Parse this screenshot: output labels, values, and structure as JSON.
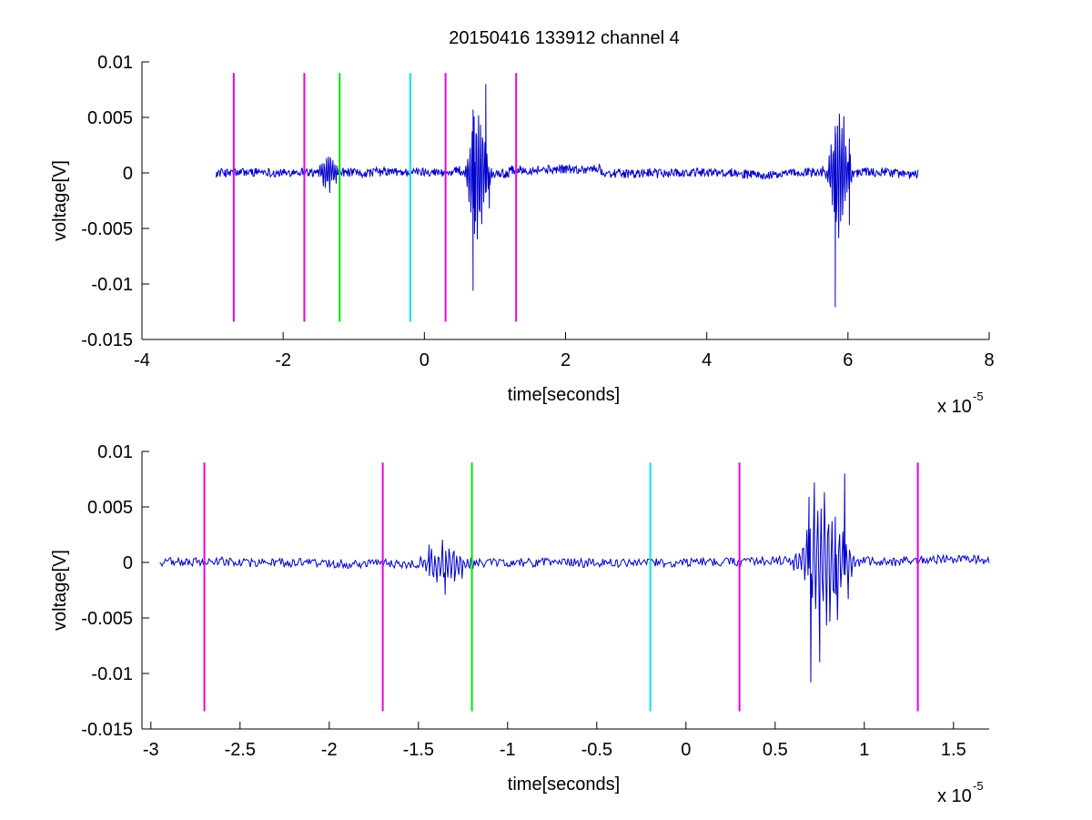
{
  "chart_data": [
    {
      "type": "line",
      "title": "20150416 133912 channel 4",
      "xlabel": "time[seconds]",
      "ylabel": "voltage[V]",
      "x_multiplier": "x 10",
      "x_multiplier_exp": "-5",
      "xlim": [
        -4,
        8
      ],
      "ylim": [
        -0.015,
        0.01
      ],
      "x_ticks": [
        -4,
        -2,
        0,
        2,
        4,
        6,
        8
      ],
      "x_tick_labels": [
        "-4",
        "-2",
        "0",
        "2",
        "4",
        "6",
        "8"
      ],
      "y_ticks": [
        0.01,
        0.005,
        0,
        -0.005,
        -0.01,
        -0.015
      ],
      "y_tick_labels": [
        "0.01",
        "0.005",
        "0",
        "-0.005",
        "-0.01",
        "-0.015"
      ],
      "signal": {
        "color": "#0000cc",
        "x_range": [
          -2.95,
          7.0
        ],
        "bursts": [
          {
            "center": -1.35,
            "width": 0.12,
            "amp": 0.0022
          },
          {
            "center": 0.75,
            "width": 0.15,
            "amp": 0.0075
          },
          {
            "center": 5.88,
            "width": 0.15,
            "amp": 0.0075
          }
        ],
        "key_points": [
          {
            "x": 0.69,
            "y": -0.0106
          },
          {
            "x": 0.69,
            "y": 0.0057
          },
          {
            "x": 0.71,
            "y": -0.0055
          },
          {
            "x": 0.87,
            "y": 0.008
          },
          {
            "x": 0.92,
            "y": -0.0032
          },
          {
            "x": 5.82,
            "y": 0.0042
          },
          {
            "x": 5.82,
            "y": -0.0121
          },
          {
            "x": 6.02,
            "y": 0.0031
          },
          {
            "x": 6.02,
            "y": -0.0047
          }
        ]
      },
      "markers": [
        {
          "x": -2.7,
          "color": "#e600e6",
          "y_top": 0.009,
          "y_bottom": -0.0134
        },
        {
          "x": -1.7,
          "color": "#e600e6",
          "y_top": 0.009,
          "y_bottom": -0.0134
        },
        {
          "x": -1.2,
          "color": "#00e600",
          "y_top": 0.009,
          "y_bottom": -0.0134
        },
        {
          "x": -0.2,
          "color": "#00e6e6",
          "y_top": 0.009,
          "y_bottom": -0.0134
        },
        {
          "x": 0.3,
          "color": "#e600e6",
          "y_top": 0.009,
          "y_bottom": -0.0134
        },
        {
          "x": 1.3,
          "color": "#e600e6",
          "y_top": 0.009,
          "y_bottom": -0.0134
        }
      ]
    },
    {
      "type": "line",
      "title": "",
      "xlabel": "time[seconds]",
      "ylabel": "voltage[V]",
      "x_multiplier": "x 10",
      "x_multiplier_exp": "-5",
      "xlim": [
        -3.05,
        1.7
      ],
      "ylim": [
        -0.015,
        0.01
      ],
      "x_ticks": [
        -3,
        -2.5,
        -2,
        -1.5,
        -1,
        -0.5,
        0,
        0.5,
        1,
        1.5
      ],
      "x_tick_labels": [
        "-3",
        "-2.5",
        "-2",
        "-1.5",
        "-1",
        "-0.5",
        "0",
        "0.5",
        "1",
        "1.5"
      ],
      "y_ticks": [
        0.01,
        0.005,
        0,
        -0.005,
        -0.01,
        -0.015
      ],
      "y_tick_labels": [
        "0.01",
        "0.005",
        "0",
        "-0.005",
        "-0.01",
        "-0.015"
      ],
      "signal": {
        "color": "#0000cc",
        "x_range": [
          -2.95,
          1.7
        ],
        "bursts": [
          {
            "center": -1.35,
            "width": 0.12,
            "amp": 0.0022
          },
          {
            "center": 0.78,
            "width": 0.14,
            "amp": 0.007
          }
        ],
        "key_points": [
          {
            "x": -1.44,
            "y": 0.0016
          },
          {
            "x": -1.35,
            "y": -0.0029
          },
          {
            "x": -1.3,
            "y": 0.001
          },
          {
            "x": 0.69,
            "y": 0.0059
          },
          {
            "x": 0.7,
            "y": -0.0108
          },
          {
            "x": 0.72,
            "y": 0.0072
          },
          {
            "x": 0.75,
            "y": -0.009
          },
          {
            "x": 0.8,
            "y": 0.0033
          },
          {
            "x": 0.84,
            "y": -0.0029
          },
          {
            "x": 0.89,
            "y": 0.008
          },
          {
            "x": 0.91,
            "y": -0.0033
          }
        ]
      },
      "markers": [
        {
          "x": -2.7,
          "color": "#e600e6",
          "y_top": 0.009,
          "y_bottom": -0.0134
        },
        {
          "x": -1.7,
          "color": "#e600e6",
          "y_top": 0.009,
          "y_bottom": -0.0134
        },
        {
          "x": -1.2,
          "color": "#00e600",
          "y_top": 0.009,
          "y_bottom": -0.0134
        },
        {
          "x": -0.2,
          "color": "#00e6e6",
          "y_top": 0.009,
          "y_bottom": -0.0134
        },
        {
          "x": 0.3,
          "color": "#e600e6",
          "y_top": 0.009,
          "y_bottom": -0.0134
        },
        {
          "x": 1.3,
          "color": "#e600e6",
          "y_top": 0.009,
          "y_bottom": -0.0134
        }
      ]
    }
  ]
}
